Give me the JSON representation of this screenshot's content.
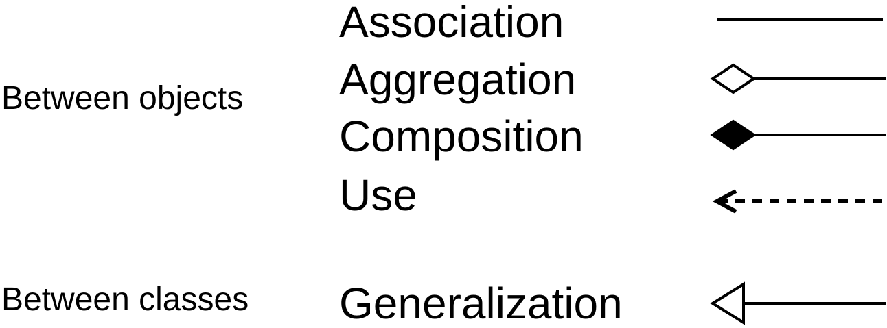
{
  "groups": {
    "objects": "Between objects",
    "classes": "Between classes"
  },
  "relationships": [
    {
      "name": "Association",
      "notation": "solid-line-icon"
    },
    {
      "name": "Aggregation",
      "notation": "hollow-diamond-line-icon"
    },
    {
      "name": "Composition",
      "notation": "filled-diamond-line-icon"
    },
    {
      "name": "Use",
      "notation": "dashed-arrow-icon"
    },
    {
      "name": "Generalization",
      "notation": "hollow-triangle-arrow-icon"
    }
  ],
  "colors": {
    "stroke": "#000000",
    "background": "#ffffff"
  }
}
